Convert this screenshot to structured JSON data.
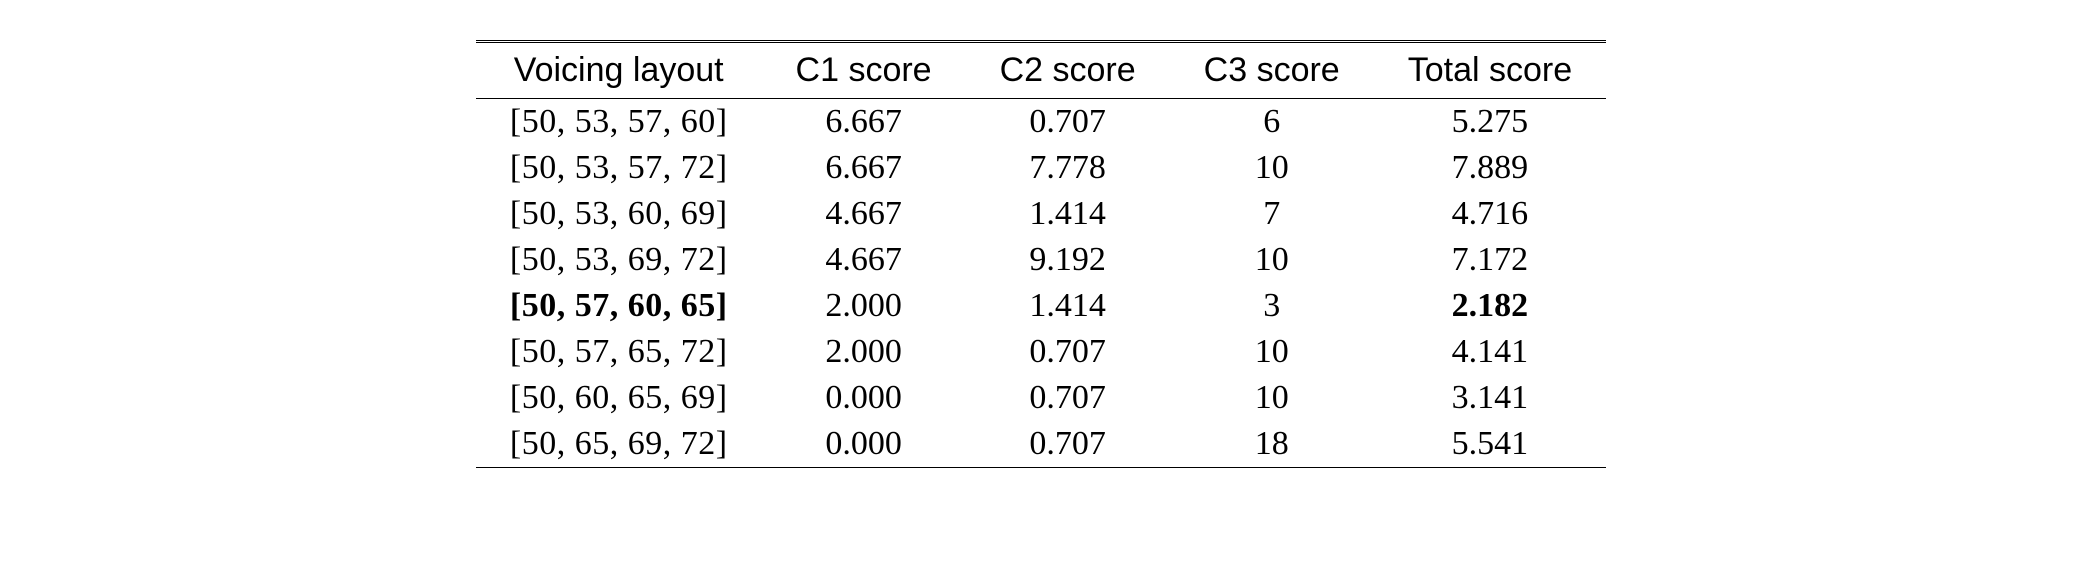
{
  "table": {
    "columns": [
      "Voicing layout",
      "C1 score",
      "C2 score",
      "C3 score",
      "Total score"
    ],
    "rows": [
      {
        "voicing": "[50, 53, 57, 60]",
        "c1": "6.667",
        "c2": "0.707",
        "c3": "6",
        "total": "5.275",
        "bold": false
      },
      {
        "voicing": "[50, 53, 57, 72]",
        "c1": "6.667",
        "c2": "7.778",
        "c3": "10",
        "total": "7.889",
        "bold": false
      },
      {
        "voicing": "[50, 53, 60, 69]",
        "c1": "4.667",
        "c2": "1.414",
        "c3": "7",
        "total": "4.716",
        "bold": false
      },
      {
        "voicing": "[50, 53, 69, 72]",
        "c1": "4.667",
        "c2": "9.192",
        "c3": "10",
        "total": "7.172",
        "bold": false
      },
      {
        "voicing": "[50, 57, 60, 65]",
        "c1": "2.000",
        "c2": "1.414",
        "c3": "3",
        "total": "2.182",
        "bold": true
      },
      {
        "voicing": "[50, 57, 65, 72]",
        "c1": "2.000",
        "c2": "0.707",
        "c3": "10",
        "total": "4.141",
        "bold": false
      },
      {
        "voicing": "[50, 60, 65, 69]",
        "c1": "0.000",
        "c2": "0.707",
        "c3": "10",
        "total": "3.141",
        "bold": false
      },
      {
        "voicing": "[50, 65, 69, 72]",
        "c1": "0.000",
        "c2": "0.707",
        "c3": "18",
        "total": "5.541",
        "bold": false
      }
    ],
    "style": {
      "header_font": "Helvetica",
      "body_font": "Times New Roman",
      "font_size_pt": 34,
      "text_color": "#000000",
      "background_color": "#ffffff",
      "border_color": "#000000",
      "double_top_rule": true,
      "bottom_rule": true,
      "bold_row_index": 4,
      "bold_total_only_columns": [
        "voicing",
        "total"
      ]
    }
  }
}
